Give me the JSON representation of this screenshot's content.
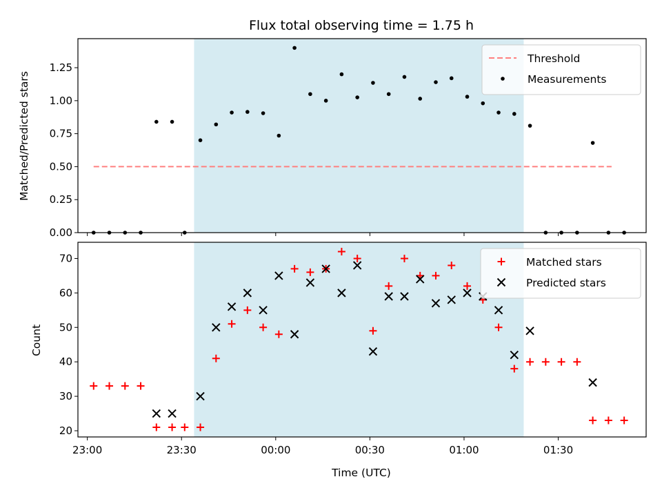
{
  "chart_data": [
    {
      "type": "scatter",
      "title": "Flux total observing time = 1.75 h",
      "xlabel": "",
      "ylabel": "Matched/Predicted stars",
      "ylim": [
        0,
        1.47
      ],
      "xlim": [
        "22:57",
        "01:58"
      ],
      "yticks": [
        "0.00",
        "0.25",
        "0.50",
        "0.75",
        "1.00",
        "1.25"
      ],
      "shaded_span": [
        "23:34",
        "01:19"
      ],
      "shade_color": "#add8e6",
      "legend_position": "top-right",
      "threshold": {
        "name": "Threshold",
        "y": 0.5,
        "x_start": "23:02",
        "x_end": "01:47",
        "color": "#ff7f7f"
      },
      "series": [
        {
          "name": "Measurements",
          "marker": "dot",
          "color": "#000000",
          "points": [
            [
              "23:02",
              0
            ],
            [
              "23:07",
              0
            ],
            [
              "23:12",
              0
            ],
            [
              "23:17",
              0
            ],
            [
              "23:22",
              0.84
            ],
            [
              "23:27",
              0.84
            ],
            [
              "23:31",
              0
            ],
            [
              "23:36",
              0.7
            ],
            [
              "23:41",
              0.82
            ],
            [
              "23:46",
              0.91
            ],
            [
              "23:51",
              0.915
            ],
            [
              "23:56",
              0.905
            ],
            [
              "00:01",
              0.735
            ],
            [
              "00:06",
              1.4
            ],
            [
              "00:11",
              1.05
            ],
            [
              "00:16",
              1.0
            ],
            [
              "00:21",
              1.2
            ],
            [
              "00:26",
              1.025
            ],
            [
              "00:31",
              1.135
            ],
            [
              "00:36",
              1.05
            ],
            [
              "00:41",
              1.18
            ],
            [
              "00:46",
              1.015
            ],
            [
              "00:51",
              1.14
            ],
            [
              "00:56",
              1.17
            ],
            [
              "01:01",
              1.03
            ],
            [
              "01:06",
              0.98
            ],
            [
              "01:11",
              0.91
            ],
            [
              "01:16",
              0.9
            ],
            [
              "01:21",
              0.81
            ],
            [
              "01:26",
              0
            ],
            [
              "01:31",
              0
            ],
            [
              "01:36",
              0
            ],
            [
              "01:41",
              0.68
            ],
            [
              "01:46",
              0
            ],
            [
              "01:51",
              0
            ]
          ]
        }
      ]
    },
    {
      "type": "scatter",
      "title": "",
      "xlabel": "Time (UTC)",
      "ylabel": "Count",
      "ylim": [
        18.2,
        74.7
      ],
      "xlim": [
        "22:57",
        "01:58"
      ],
      "xticks": [
        "23:00",
        "23:30",
        "00:00",
        "00:30",
        "01:00",
        "01:30"
      ],
      "yticks": [
        "20",
        "30",
        "40",
        "50",
        "60",
        "70"
      ],
      "shaded_span": [
        "23:34",
        "01:19"
      ],
      "shade_color": "#add8e6",
      "legend_position": "top-right",
      "series": [
        {
          "name": "Matched stars",
          "marker": "plus",
          "color": "#ff0000",
          "points": [
            [
              "23:02",
              33
            ],
            [
              "23:07",
              33
            ],
            [
              "23:12",
              33
            ],
            [
              "23:17",
              33
            ],
            [
              "23:22",
              21
            ],
            [
              "23:27",
              21
            ],
            [
              "23:31",
              21
            ],
            [
              "23:36",
              21
            ],
            [
              "23:41",
              41
            ],
            [
              "23:46",
              51
            ],
            [
              "23:51",
              55
            ],
            [
              "23:56",
              50
            ],
            [
              "00:01",
              48
            ],
            [
              "00:06",
              67
            ],
            [
              "00:11",
              66
            ],
            [
              "00:16",
              67
            ],
            [
              "00:21",
              72
            ],
            [
              "00:26",
              70
            ],
            [
              "00:31",
              49
            ],
            [
              "00:36",
              62
            ],
            [
              "00:41",
              70
            ],
            [
              "00:46",
              65
            ],
            [
              "00:51",
              65
            ],
            [
              "00:56",
              68
            ],
            [
              "01:01",
              62
            ],
            [
              "01:06",
              58
            ],
            [
              "01:11",
              50
            ],
            [
              "01:16",
              38
            ],
            [
              "01:21",
              40
            ],
            [
              "01:26",
              40
            ],
            [
              "01:31",
              40
            ],
            [
              "01:36",
              40
            ],
            [
              "01:41",
              23
            ],
            [
              "01:46",
              23
            ],
            [
              "01:51",
              23
            ]
          ]
        },
        {
          "name": "Predicted stars",
          "marker": "x",
          "color": "#000000",
          "points": [
            [
              "23:22",
              25
            ],
            [
              "23:27",
              25
            ],
            [
              "23:36",
              30
            ],
            [
              "23:41",
              50
            ],
            [
              "23:46",
              56
            ],
            [
              "23:51",
              60
            ],
            [
              "23:56",
              55
            ],
            [
              "00:01",
              65
            ],
            [
              "00:06",
              48
            ],
            [
              "00:11",
              63
            ],
            [
              "00:16",
              67
            ],
            [
              "00:21",
              60
            ],
            [
              "00:26",
              68
            ],
            [
              "00:31",
              43
            ],
            [
              "00:36",
              59
            ],
            [
              "00:41",
              59
            ],
            [
              "00:46",
              64
            ],
            [
              "00:51",
              57
            ],
            [
              "00:56",
              58
            ],
            [
              "01:01",
              60
            ],
            [
              "01:06",
              59
            ],
            [
              "01:11",
              55
            ],
            [
              "01:16",
              42
            ],
            [
              "01:21",
              49
            ],
            [
              "01:41",
              34
            ]
          ]
        }
      ]
    }
  ]
}
